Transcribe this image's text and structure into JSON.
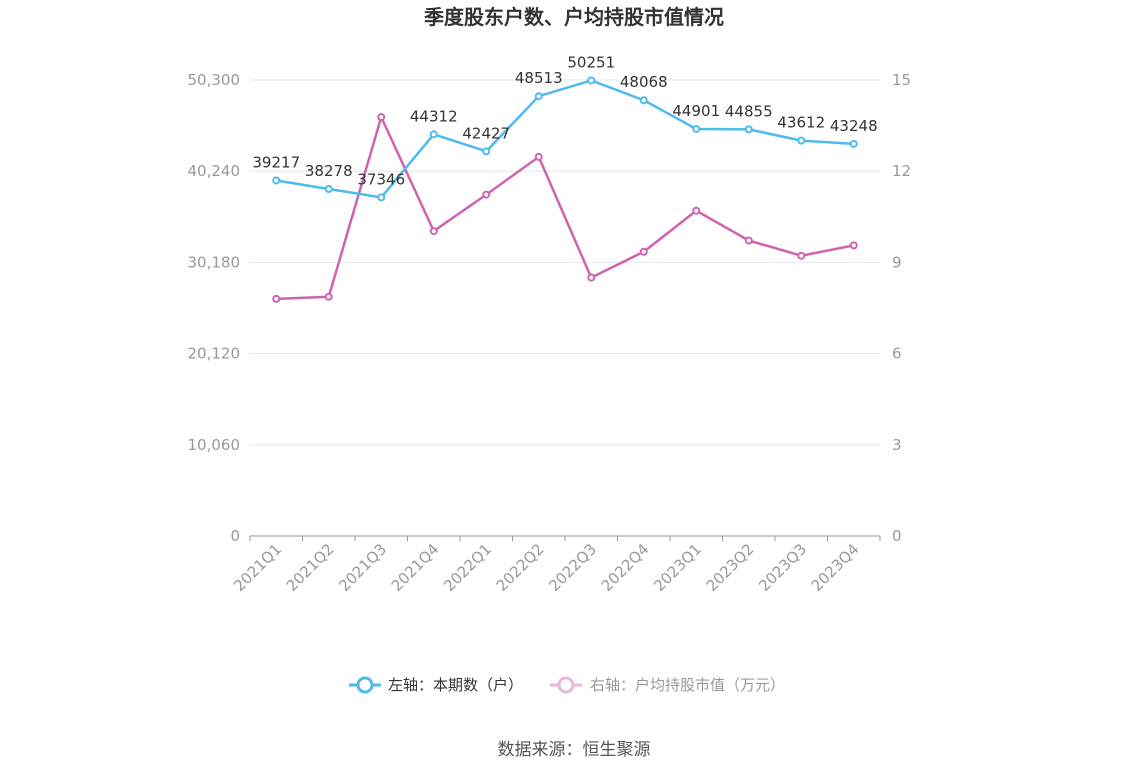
{
  "chart_data": {
    "type": "line",
    "title": "季度股东户数、户均持股市值情况",
    "categories": [
      "2021Q1",
      "2021Q2",
      "2021Q3",
      "2021Q4",
      "2022Q1",
      "2022Q2",
      "2022Q3",
      "2022Q4",
      "2023Q1",
      "2023Q2",
      "2023Q3",
      "2023Q4"
    ],
    "left_axis": {
      "ticks": [
        "0",
        "10,060",
        "20,120",
        "30,180",
        "40,240",
        "50,300"
      ],
      "min": 0,
      "max": 50300
    },
    "right_axis": {
      "ticks": [
        "0",
        "3",
        "6",
        "9",
        "12",
        "15"
      ],
      "min": 0,
      "max": 15
    },
    "series": [
      {
        "name": "左轴：本期数（户）",
        "axis": "left",
        "color": "#4dbbee",
        "values": [
          39217,
          38278,
          37346,
          44312,
          42427,
          48513,
          50251,
          48068,
          44901,
          44855,
          43612,
          43248
        ],
        "labels": [
          "39217",
          "38278",
          "37346",
          "44312",
          "42427",
          "48513",
          "50251",
          "48068",
          "44901",
          "44855",
          "43612",
          "43248"
        ]
      },
      {
        "name": "右轴：户均持股市值（万元）",
        "axis": "right",
        "color": "#d062b0",
        "values": [
          7.8,
          7.87,
          13.78,
          10.03,
          11.23,
          12.47,
          8.5,
          9.35,
          10.7,
          9.72,
          9.22,
          9.56
        ]
      }
    ],
    "grid": true,
    "legend": "bottom"
  },
  "source": "数据来源：恒生聚源",
  "colors": {
    "grid": "#e3e8f0",
    "axis": "#999999",
    "legend_inactive": "#999999"
  }
}
